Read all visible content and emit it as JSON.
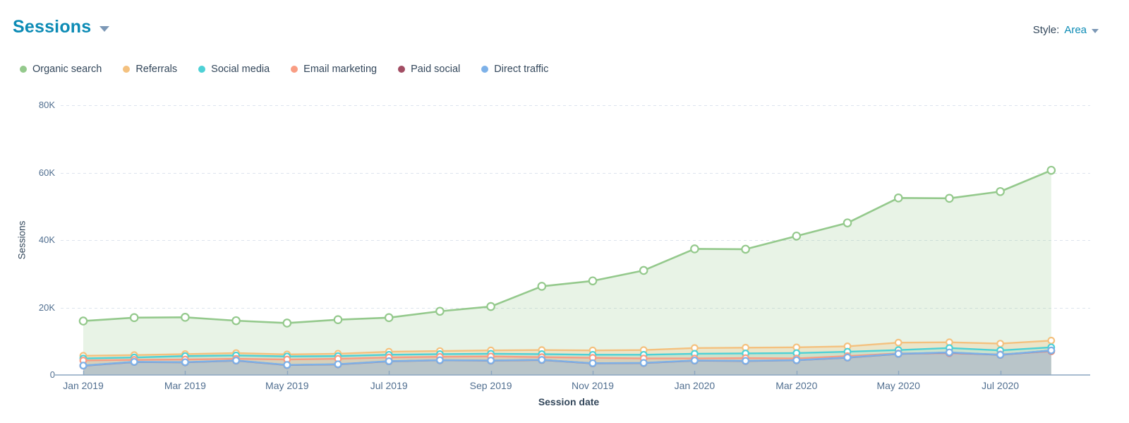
{
  "header": {
    "title": "Sessions"
  },
  "style_control": {
    "label": "Style:",
    "value": "Area"
  },
  "colors": {
    "title_teal": "#0c8bb5",
    "text_dark": "#33475b",
    "axis_text": "#516f90",
    "gridline": "#dde4ee",
    "axis_line": "#8ba6c0"
  },
  "legend": {
    "items": [
      {
        "label": "Organic search",
        "color": "#94c98c"
      },
      {
        "label": "Referrals",
        "color": "#f4c17f"
      },
      {
        "label": "Social media",
        "color": "#4ed1d6"
      },
      {
        "label": "Email marketing",
        "color": "#f99d83"
      },
      {
        "label": "Paid social",
        "color": "#a24d63"
      },
      {
        "label": "Direct traffic",
        "color": "#7db1e8"
      }
    ]
  },
  "chart_data": {
    "type": "area",
    "xlabel": "Session date",
    "ylabel": "Sessions",
    "ylim": [
      0,
      80000
    ],
    "grid": "horizontal-dashed",
    "legend_position": "top-left",
    "x": [
      "Jan 2019",
      "Feb 2019",
      "Mar 2019",
      "Apr 2019",
      "May 2019",
      "Jun 2019",
      "Jul 2019",
      "Aug 2019",
      "Sep 2019",
      "Oct 2019",
      "Nov 2019",
      "Dec 2019",
      "Jan 2020",
      "Feb 2020",
      "Mar 2020",
      "Apr 2020",
      "May 2020",
      "Jun 2020",
      "Jul 2020",
      "Aug 2020"
    ],
    "x_tick_every": 2,
    "y_ticks": [
      {
        "value": 0,
        "label": "0"
      },
      {
        "value": 20000,
        "label": "20K"
      },
      {
        "value": 40000,
        "label": "40K"
      },
      {
        "value": 60000,
        "label": "60K"
      },
      {
        "value": 80000,
        "label": "80K"
      }
    ],
    "series": [
      {
        "name": "Organic search",
        "color": "#94c98c",
        "fill": "rgba(148,201,140,0.22)",
        "values": [
          16000,
          17000,
          17100,
          16100,
          15400,
          16400,
          17000,
          18900,
          20300,
          26300,
          27900,
          31000,
          37400,
          37300,
          41200,
          45100,
          52500,
          52400,
          54400,
          60700
        ]
      },
      {
        "name": "Referrals",
        "color": "#f4c17f",
        "fill": "rgba(244,193,127,0.28)",
        "values": [
          5700,
          5900,
          6200,
          6500,
          6100,
          6300,
          6900,
          7100,
          7300,
          7400,
          7300,
          7400,
          8000,
          8100,
          8200,
          8500,
          9600,
          9700,
          9300,
          10200
        ]
      },
      {
        "name": "Social media",
        "color": "#4ed1d6",
        "fill": "rgba(78,209,214,0.20)",
        "values": [
          4900,
          5200,
          5600,
          5800,
          5500,
          5600,
          6000,
          6200,
          6300,
          6200,
          6000,
          6000,
          6300,
          6400,
          6500,
          6900,
          7400,
          8000,
          7300,
          8200
        ]
      },
      {
        "name": "Email marketing",
        "color": "#f99d83",
        "fill": "rgba(249,157,131,0.26)",
        "values": [
          4300,
          4500,
          4600,
          4800,
          4600,
          4800,
          5200,
          5400,
          5500,
          5300,
          5100,
          4900,
          4900,
          5000,
          4900,
          5600,
          6400,
          6400,
          6100,
          7000
        ]
      },
      {
        "name": "Paid social",
        "color": "#a24d63",
        "fill": "rgba(162,77,99,0)",
        "values": [
          2750,
          3850,
          3750,
          4250,
          2950,
          3150,
          4050,
          4350,
          4250,
          4450,
          3450,
          3550,
          4250,
          4150,
          4350,
          5150,
          6250,
          6650,
          5950,
          7250
        ]
      },
      {
        "name": "Direct traffic",
        "color": "#7db1e8",
        "fill": "rgba(125,177,232,0.34)",
        "values": [
          2800,
          3900,
          3800,
          4300,
          3000,
          3200,
          4100,
          4400,
          4300,
          4500,
          3500,
          3600,
          4300,
          4200,
          4400,
          5200,
          6300,
          6700,
          6000,
          7300
        ]
      }
    ]
  }
}
